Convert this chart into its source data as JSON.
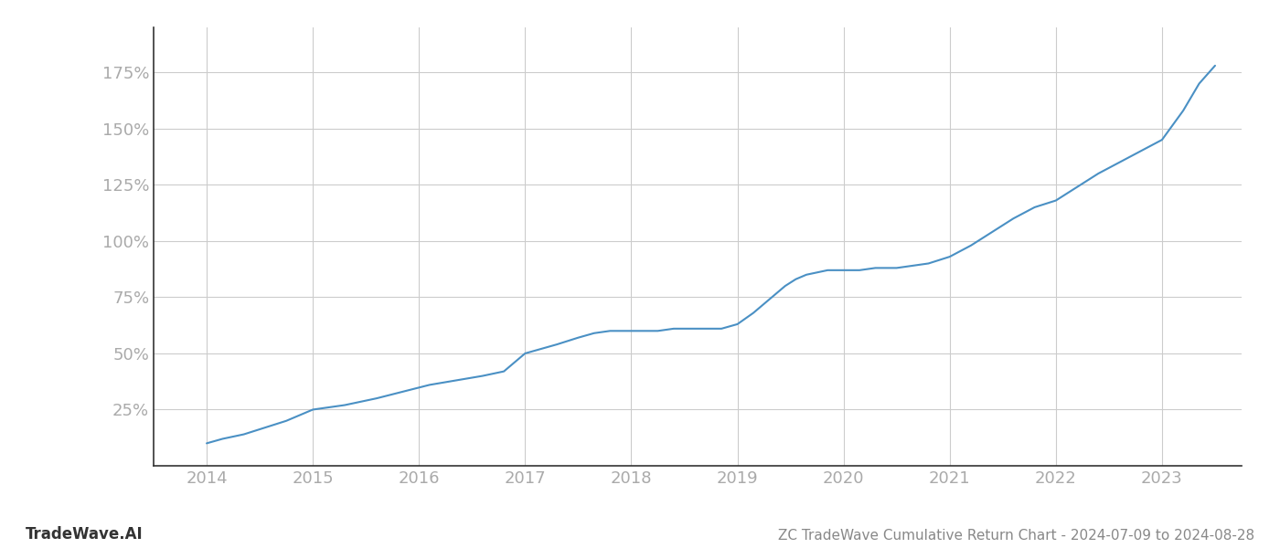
{
  "title": "ZC TradeWave Cumulative Return Chart - 2024-07-09 to 2024-08-28",
  "watermark": "TradeWave.AI",
  "line_color": "#4a90c4",
  "background_color": "#ffffff",
  "grid_color": "#cccccc",
  "x_years": [
    2014,
    2015,
    2016,
    2017,
    2018,
    2019,
    2020,
    2021,
    2022,
    2023
  ],
  "x_tick_labels": [
    "2014",
    "2015",
    "2016",
    "2017",
    "2018",
    "2019",
    "2020",
    "2021",
    "2022",
    "2023"
  ],
  "y_ticks": [
    25,
    50,
    75,
    100,
    125,
    150,
    175
  ],
  "ylim": [
    0,
    195
  ],
  "xlim": [
    2013.5,
    2023.75
  ],
  "data_x": [
    2014.0,
    2014.15,
    2014.35,
    2014.55,
    2014.75,
    2015.0,
    2015.3,
    2015.6,
    2015.85,
    2016.1,
    2016.35,
    2016.6,
    2016.8,
    2017.0,
    2017.15,
    2017.3,
    2017.5,
    2017.65,
    2017.8,
    2017.95,
    2018.1,
    2018.25,
    2018.4,
    2018.55,
    2018.7,
    2018.85,
    2019.0,
    2019.15,
    2019.3,
    2019.45,
    2019.55,
    2019.65,
    2019.75,
    2019.85,
    2020.0,
    2020.15,
    2020.3,
    2020.5,
    2020.65,
    2020.8,
    2021.0,
    2021.2,
    2021.4,
    2021.6,
    2021.8,
    2022.0,
    2022.2,
    2022.4,
    2022.6,
    2022.8,
    2023.0,
    2023.2,
    2023.35,
    2023.5
  ],
  "data_y": [
    10,
    12,
    14,
    17,
    20,
    25,
    27,
    30,
    33,
    36,
    38,
    40,
    42,
    50,
    52,
    54,
    57,
    59,
    60,
    60,
    60,
    60,
    61,
    61,
    61,
    61,
    63,
    68,
    74,
    80,
    83,
    85,
    86,
    87,
    87,
    87,
    88,
    88,
    89,
    90,
    93,
    98,
    104,
    110,
    115,
    118,
    124,
    130,
    135,
    140,
    145,
    158,
    170,
    178
  ],
  "line_width": 1.5,
  "title_fontsize": 11,
  "watermark_fontsize": 12,
  "tick_fontsize": 13,
  "title_color": "#888888",
  "watermark_color": "#333333",
  "tick_color": "#aaaaaa",
  "spine_color": "#333333",
  "left_spine_color": "#333333"
}
